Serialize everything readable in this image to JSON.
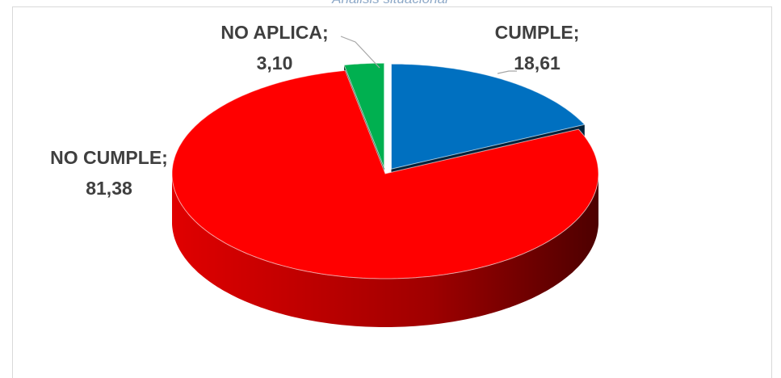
{
  "chart_data": {
    "type": "pie",
    "title": "Análisis situacional",
    "categories": [
      "CUMPLE;",
      "NO CUMPLE;",
      "NO APLICA;"
    ],
    "values": [
      18.61,
      81.38,
      3.1
    ],
    "value_labels": [
      "18,61",
      "81,38",
      "3,10"
    ],
    "colors": [
      "#0070c0",
      "#ff0000",
      "#00b050"
    ]
  }
}
